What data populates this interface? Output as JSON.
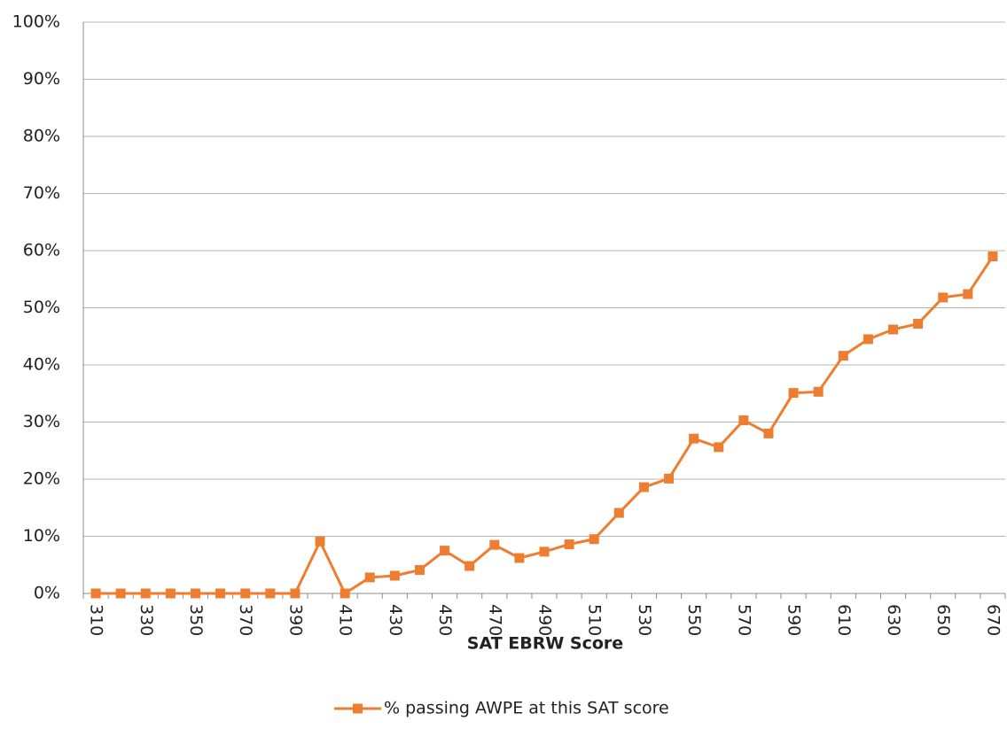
{
  "chart_data": {
    "type": "line",
    "x_label": "SAT EBRW Score",
    "categories": [
      "310",
      null,
      "330",
      null,
      "350",
      null,
      "370",
      null,
      "390",
      null,
      "410",
      null,
      "430",
      null,
      "450",
      null,
      "470",
      null,
      "490",
      null,
      "510",
      null,
      "530",
      null,
      "550",
      null,
      "570",
      null,
      "590",
      null,
      "610",
      null,
      "630",
      null,
      "650",
      null,
      "670"
    ],
    "series": [
      {
        "name": "% passing AWPE at this SAT score",
        "color": "#ed7d31",
        "values": [
          0,
          0,
          0,
          0,
          0,
          0,
          0,
          0,
          0,
          9.1,
          0,
          2.8,
          3.1,
          4.1,
          7.5,
          4.8,
          8.5,
          6.2,
          7.3,
          8.6,
          9.5,
          14.1,
          18.6,
          20.1,
          27.1,
          25.6,
          30.3,
          28,
          35.1,
          35.3,
          41.6,
          44.5,
          46.2,
          47.2,
          51.8,
          52.4,
          59
        ]
      }
    ],
    "ylim": [
      0,
      100
    ],
    "yticks": [
      {
        "value": 0,
        "label": "0%"
      },
      {
        "value": 10,
        "label": "10%"
      },
      {
        "value": 20,
        "label": "20%"
      },
      {
        "value": 30,
        "label": "30%"
      },
      {
        "value": 40,
        "label": "40%"
      },
      {
        "value": 50,
        "label": "50%"
      },
      {
        "value": 60,
        "label": "60%"
      },
      {
        "value": 70,
        "label": "70%"
      },
      {
        "value": 80,
        "label": "80%"
      },
      {
        "value": 90,
        "label": "90%"
      },
      {
        "value": 100,
        "label": "100%"
      }
    ],
    "grid": true,
    "legend": "bottom"
  }
}
